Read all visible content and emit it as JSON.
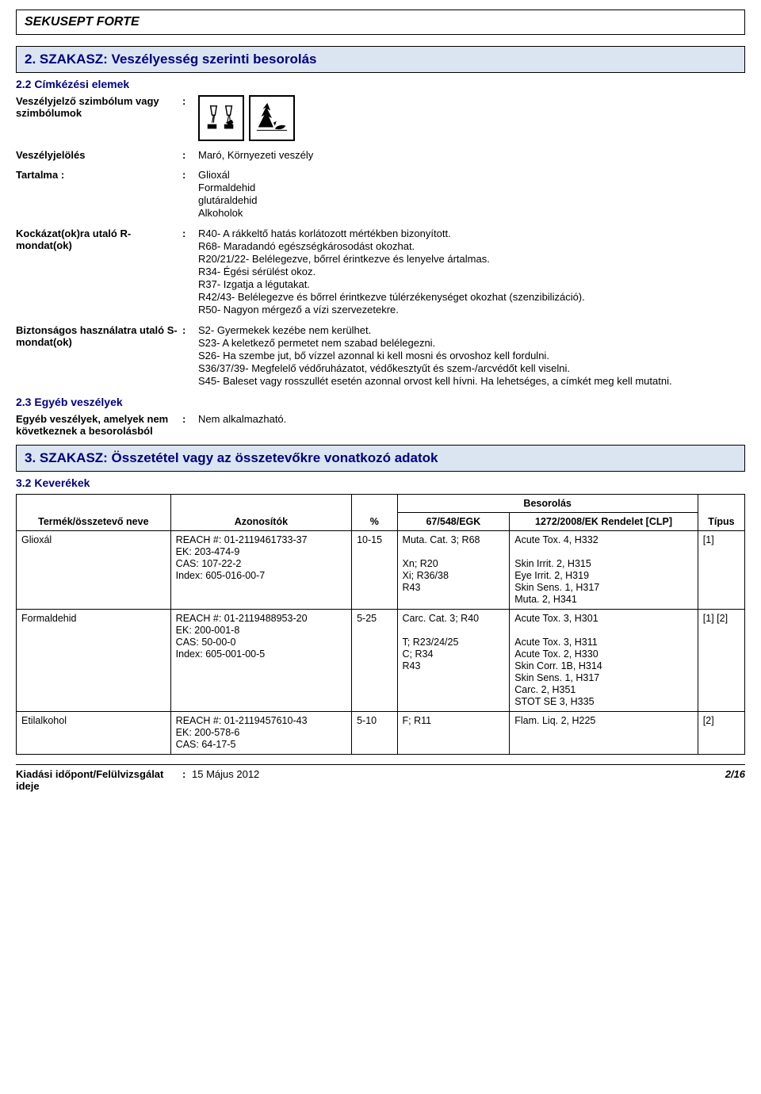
{
  "product_title": "SEKUSEPT FORTE",
  "section2": {
    "heading": "2. SZAKASZ: Veszélyesség szerinti besorolás",
    "sub": "2.2 Címkézési elemek",
    "symbol_row": {
      "label": "Veszélyjelző szimbólum vagy szimbólumok",
      "colon": ":"
    },
    "rows": {
      "hazard_symbol": {
        "label": "Veszélyjelölés",
        "colon": ":",
        "value": "Maró, Környezeti veszély"
      },
      "contents": {
        "label": "Tartalma :",
        "colon": ":",
        "lines": [
          "Glioxál",
          "Formaldehid",
          "glutáraldehid",
          "Alkoholok"
        ]
      },
      "r_phrases": {
        "label": "Kockázat(ok)ra utaló R-mondat(ok)",
        "colon": ":",
        "lines": [
          "R40- A rákkeltő hatás korlátozott mértékben bizonyított.",
          "R68- Maradandó egészségkárosodást okozhat.",
          "R20/21/22- Belélegezve, bőrrel érintkezve és lenyelve ártalmas.",
          "R34- Égési sérülést okoz.",
          "R37- Izgatja a légutakat.",
          "R42/43- Belélegezve és bőrrel érintkezve túlérzékenységet okozhat (szenzibilizáció).",
          "R50- Nagyon mérgező a vízi szervezetekre."
        ]
      },
      "s_phrases": {
        "label": "Biztonságos használatra utaló S-mondat(ok)",
        "colon": ":",
        "lines": [
          "S2- Gyermekek kezébe nem kerülhet.",
          "S23- A keletkező permetet nem szabad belélegezni.",
          "S26- Ha szembe jut, bő vízzel azonnal ki kell mosni és orvoshoz kell fordulni.",
          "S36/37/39- Megfelelő védőruházatot, védőkesztyűt és szem-/arcvédőt kell viselni.",
          "S45- Baleset vagy rosszullét esetén azonnal orvost kell hívni. Ha lehetséges, a címkét meg kell mutatni."
        ]
      }
    },
    "other_hazards": {
      "sub": "2.3 Egyéb veszélyek",
      "label": "Egyéb veszélyek, amelyek nem következnek a besorolásból",
      "colon": ":",
      "value": "Nem alkalmazható."
    }
  },
  "section3": {
    "heading": "3. SZAKASZ: Összetétel vagy az összetevőkre vonatkozó adatok",
    "sub": "3.2 Keverékek",
    "besorolas": "Besorolás",
    "columns": {
      "name": "Termék/összetevő neve",
      "ids": "Azonosítók",
      "pct": "%",
      "egk": "67/548/EGK",
      "clp": "1272/2008/EK Rendelet [CLP]",
      "type": "Típus"
    },
    "rows": [
      {
        "name": "Glioxál",
        "ids": [
          "REACH #: 01-2119461733-37",
          "EK: 203-474-9",
          "CAS: 107-22-2",
          "Index: 605-016-00-7"
        ],
        "pct": "10-15",
        "egk": [
          "Muta. Cat. 3; R68",
          "",
          "Xn; R20",
          "Xi; R36/38",
          "R43"
        ],
        "clp": [
          "Acute Tox. 4, H332",
          "",
          "Skin Irrit. 2, H315",
          "Eye Irrit. 2, H319",
          "Skin Sens. 1, H317",
          "Muta. 2, H341"
        ],
        "type": "[1]"
      },
      {
        "name": "Formaldehid",
        "ids": [
          "REACH #: 01-2119488953-20",
          "EK: 200-001-8",
          "CAS: 50-00-0",
          "Index: 605-001-00-5"
        ],
        "pct": "5-25",
        "egk": [
          "Carc. Cat. 3; R40",
          "",
          "T; R23/24/25",
          "C; R34",
          "R43"
        ],
        "clp": [
          "Acute Tox. 3, H301",
          "",
          "Acute Tox. 3, H311",
          "Acute Tox. 2, H330",
          "Skin Corr. 1B, H314",
          "Skin Sens. 1, H317",
          "Carc. 2, H351",
          "STOT SE 3, H335"
        ],
        "type": "[1] [2]"
      },
      {
        "name": "Etilalkohol",
        "ids": [
          "REACH #: 01-2119457610-43",
          "EK: 200-578-6",
          "CAS: 64-17-5"
        ],
        "pct": "5-10",
        "egk": [
          "F; R11"
        ],
        "clp": [
          "Flam. Liq. 2, H225"
        ],
        "type": "[2]"
      }
    ]
  },
  "footer": {
    "label": "Kiadási időpont/Felülvizsgálat ideje",
    "colon": ":",
    "date": "15 Május 2012",
    "page": "2/16"
  }
}
